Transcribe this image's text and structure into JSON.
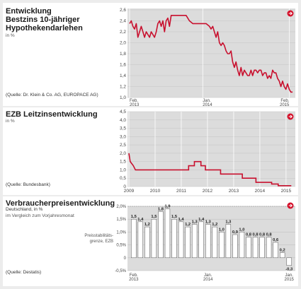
{
  "colors": {
    "line": "#c8102e",
    "plot_bg": "#dcdcdc",
    "accent": "#d4102a"
  },
  "chart_data": [
    {
      "type": "line",
      "title": "Entwicklung Bestzins 10-jähriger Hypothekendarlehen",
      "title_lines": [
        "Entwicklung",
        "Bestzins 10-jähriger",
        "Hypothekendarlehen"
      ],
      "unit": "in %",
      "source": "(Quelle: Dr. Klein & Co. AG, EUROPACE AG)",
      "ylim": [
        1.0,
        2.6
      ],
      "yticks": [
        "2,6",
        "2,4",
        "2,2",
        "2,0",
        "1,8",
        "1,6",
        "1,4",
        "1,2",
        "1,0"
      ],
      "xtick_labels": [
        {
          "l1": "Feb.",
          "l2": "2013",
          "x": 0
        },
        {
          "l1": "Jan.",
          "l2": "2014",
          "x": 11
        },
        {
          "l1": "Feb.",
          "l2": "2015",
          "x": 24
        }
      ],
      "x": [
        0,
        0.25,
        0.5,
        0.75,
        1,
        1.25,
        1.5,
        1.75,
        2,
        2.25,
        2.5,
        2.75,
        3,
        3.25,
        3.5,
        3.75,
        4,
        4.25,
        4.5,
        4.75,
        5,
        5.25,
        5.5,
        5.75,
        6,
        6.25,
        6.5,
        6.75,
        7,
        7.25,
        7.5,
        7.75,
        8,
        8.5,
        9,
        9.5,
        10,
        10.5,
        11,
        11.5,
        12,
        12.25,
        12.5,
        12.75,
        13,
        13.25,
        13.5,
        13.75,
        14,
        14.25,
        14.5,
        14.75,
        15,
        15.25,
        15.5,
        15.75,
        16,
        16.25,
        16.5,
        16.75,
        17,
        17.25,
        17.5,
        17.75,
        18,
        18.25,
        18.5,
        18.75,
        19,
        19.25,
        19.5,
        19.75,
        20,
        20.25,
        20.5,
        20.75,
        21,
        21.25,
        21.5,
        21.75,
        22,
        22.25,
        22.5,
        22.75,
        23,
        23.25,
        23.5,
        23.75,
        24,
        24.25,
        24.5
      ],
      "values": [
        2.35,
        2.4,
        2.3,
        2.25,
        2.35,
        2.1,
        2.2,
        2.3,
        2.2,
        2.1,
        2.2,
        2.15,
        2.1,
        2.2,
        2.15,
        2.1,
        2.2,
        2.35,
        2.4,
        2.3,
        2.4,
        2.2,
        2.4,
        2.45,
        2.3,
        2.5,
        2.5,
        2.5,
        2.5,
        2.5,
        2.5,
        2.5,
        2.5,
        2.5,
        2.4,
        2.35,
        2.35,
        2.35,
        2.35,
        2.35,
        2.3,
        2.25,
        2.3,
        2.2,
        2.1,
        2.2,
        2.0,
        1.95,
        2.0,
        1.95,
        1.85,
        1.8,
        1.8,
        1.85,
        1.65,
        1.55,
        1.65,
        1.5,
        1.4,
        1.55,
        1.4,
        1.5,
        1.45,
        1.4,
        1.4,
        1.5,
        1.4,
        1.5,
        1.5,
        1.45,
        1.5,
        1.5,
        1.4,
        1.45,
        1.45,
        1.35,
        1.4,
        1.35,
        1.5,
        1.45,
        1.45,
        1.35,
        1.3,
        1.2,
        1.3,
        1.2,
        1.15,
        1.25,
        1.15,
        1.1,
        1.1
      ]
    },
    {
      "type": "line",
      "title": "EZB Leitzinsentwicklung",
      "unit": "in %",
      "source": "(Quelle: Bundesbank)",
      "ylim": [
        0,
        4.5
      ],
      "yticks": [
        "4,5",
        "4,0",
        "3,5",
        "3,0",
        "2,5",
        "2,0",
        "1,5",
        "1,0",
        "0,5",
        "0"
      ],
      "xtick_labels": [
        {
          "l1": "2009",
          "x": 2009
        },
        {
          "l1": "2010",
          "x": 2010
        },
        {
          "l1": "2011",
          "x": 2011
        },
        {
          "l1": "2012",
          "x": 2012
        },
        {
          "l1": "2013",
          "x": 2013
        },
        {
          "l1": "2014",
          "x": 2014
        },
        {
          "l1": "2015",
          "x": 2015
        }
      ],
      "x": [
        2009.0,
        2009.05,
        2009.17,
        2009.25,
        2009.4,
        2010,
        2011,
        2011.28,
        2011.5,
        2011.75,
        2011.92,
        2012.5,
        2013.33,
        2013.85,
        2014.45,
        2014.7,
        2015.2
      ],
      "values": [
        2.0,
        1.5,
        1.25,
        1.0,
        1.0,
        1.0,
        1.0,
        1.25,
        1.5,
        1.25,
        1.0,
        0.75,
        0.5,
        0.25,
        0.15,
        0.05,
        0.05
      ]
    },
    {
      "type": "bar",
      "title": "Verbraucherpreisentwicklung",
      "subtitle": "Deutschland, in %",
      "subtitle2": "im Vergleich zum Vorjahresmonat",
      "source": "(Quelle: Destatis)",
      "annotation_lines": [
        "Preisstabilitäts-",
        "grenze, EZB"
      ],
      "ylim": [
        -0.5,
        2.0
      ],
      "yticks": [
        "2,0%",
        "1,5%",
        "1,0%",
        "0,5%",
        "0",
        "-0,5%"
      ],
      "xtick_labels": [
        {
          "l1": "Feb.",
          "l2": "2013",
          "i": 0
        },
        {
          "l1": "Jan.",
          "l2": "2014",
          "i": 11
        },
        {
          "l1": "Jan.",
          "l2": "2015",
          "i": 23
        }
      ],
      "values": [
        1.5,
        1.4,
        1.2,
        1.5,
        1.8,
        1.9,
        1.5,
        1.4,
        1.2,
        1.3,
        1.4,
        1.3,
        1.2,
        1.0,
        1.3,
        0.9,
        1.0,
        0.8,
        0.8,
        0.8,
        0.8,
        0.6,
        0.2,
        -0.3
      ],
      "labels": [
        "1,5",
        "1,4",
        "1,2",
        "1,5",
        "1,8",
        "1,9",
        "1,5",
        "1,4",
        "1,2",
        "1,3",
        "1,4",
        "1,3",
        "1,2",
        "1,0",
        "1,3",
        "0,9",
        "1,0",
        "0,8",
        "0,8",
        "0,8",
        "0,8",
        "0,6",
        "0,2",
        "-0,3"
      ]
    }
  ]
}
